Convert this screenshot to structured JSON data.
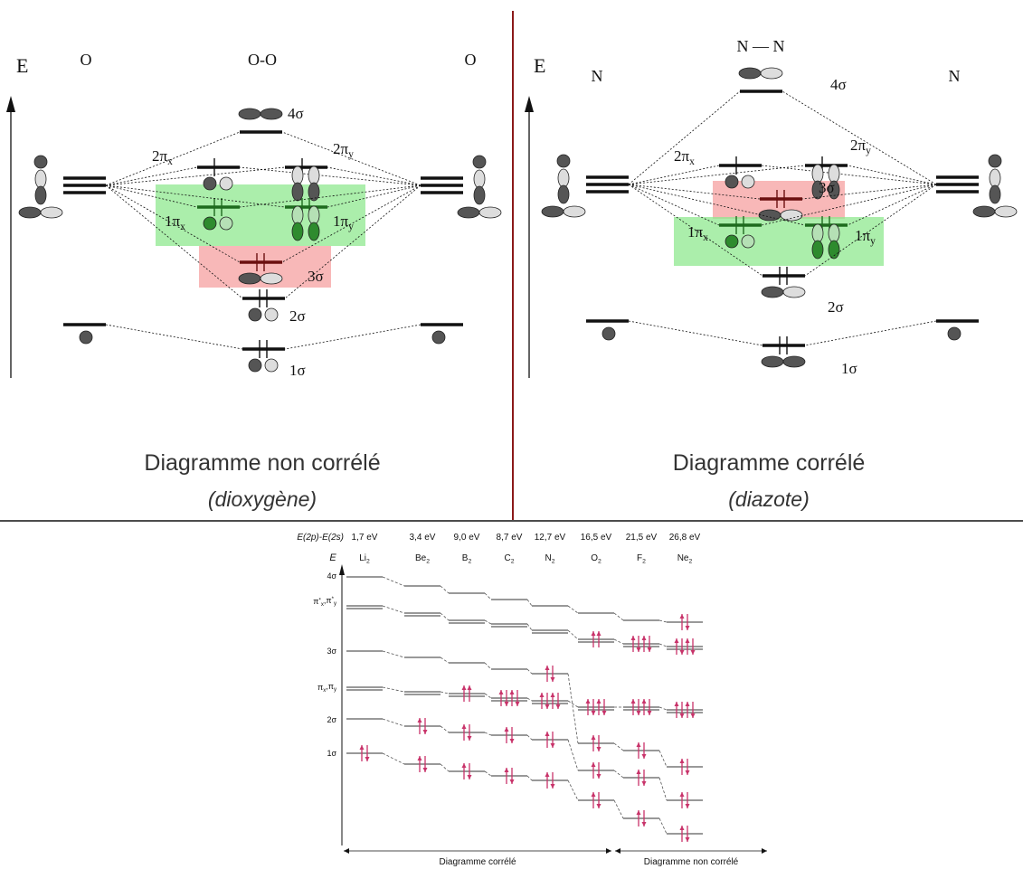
{
  "left_panel": {
    "axis_label": "E",
    "atom_left": "O",
    "molecule": "O-O",
    "atom_right": "O",
    "orbitals": [
      "4σ",
      {
        "base": "2π",
        "sub": "x"
      },
      {
        "base": "2π",
        "sub": "y"
      },
      {
        "base": "1π",
        "sub": "x"
      },
      {
        "base": "1π",
        "sub": "y"
      },
      "3σ",
      "2σ",
      "1σ"
    ],
    "caption": "Diagramme non corrélé",
    "subcaption": "(dioxygène)"
  },
  "right_panel": {
    "axis_label": "E",
    "atom_left": "N",
    "molecule": "N — N",
    "atom_right": "N",
    "orbitals": [
      "4σ",
      {
        "base": "2π",
        "sub": "x"
      },
      {
        "base": "2π",
        "sub": "y"
      },
      "3σ",
      {
        "base": "1π",
        "sub": "x"
      },
      {
        "base": "1π",
        "sub": "y"
      },
      "2σ",
      "1σ"
    ],
    "caption": "Diagramme corrélé",
    "subcaption": "(diazote)"
  },
  "bottom_chart": {
    "gap_label": "E(2p)-E(2s)",
    "gaps": [
      "1,7 eV",
      "3,4 eV",
      "9,0 eV",
      "8,7 eV",
      "12,7 eV",
      "16,5 eV",
      "21,5 eV",
      "26,8 eV"
    ],
    "molecules": [
      {
        "base": "Li",
        "sub": "2"
      },
      {
        "base": "Be",
        "sub": "2"
      },
      {
        "base": "B",
        "sub": "2"
      },
      {
        "base": "C",
        "sub": "2"
      },
      {
        "base": "N",
        "sub": "2"
      },
      {
        "base": "O",
        "sub": "2"
      },
      {
        "base": "F",
        "sub": "2"
      },
      {
        "base": "Ne",
        "sub": "2"
      }
    ],
    "axis_label": "E",
    "levels": [
      "4σ",
      [
        {
          "base": "π",
          "sub": "x",
          "sup": "*"
        },
        {
          "base": ",π",
          "sub": "y",
          "sup": "*"
        }
      ],
      "3σ",
      [
        {
          "base": "π",
          "sub": "x"
        },
        {
          "base": ",π",
          "sub": "y"
        }
      ],
      "2σ",
      "1σ"
    ],
    "region_left": "Diagramme corrélé",
    "region_right": "Diagramme non corrélé"
  }
}
